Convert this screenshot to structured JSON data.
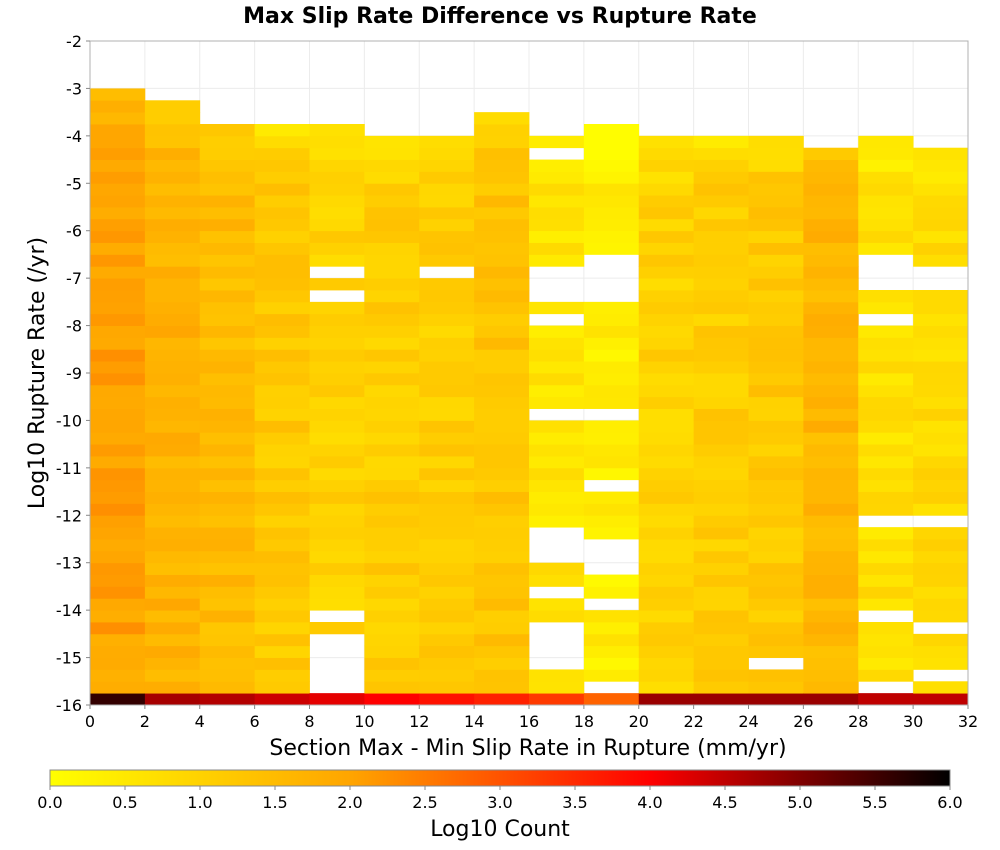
{
  "chart_data": {
    "type": "heatmap",
    "title": "Max Slip Rate Difference vs Rupture Rate",
    "xlabel": "Section Max - Min Slip Rate in Rupture (mm/yr)",
    "ylabel": "Log10 Rupture Rate (/yr)",
    "xlim": [
      0,
      32
    ],
    "ylim": [
      -16,
      -2
    ],
    "x_ticks": [
      "0",
      "2",
      "4",
      "6",
      "8",
      "10",
      "12",
      "14",
      "16",
      "18",
      "20",
      "22",
      "24",
      "26",
      "28",
      "30",
      "32"
    ],
    "y_ticks": [
      "-2",
      "-3",
      "-4",
      "-5",
      "-6",
      "-7",
      "-8",
      "-9",
      "-10",
      "-11",
      "-12",
      "-13",
      "-14",
      "-15",
      "-16"
    ],
    "x_bin_width": 2,
    "y_bin_width": 0.25,
    "grid": true,
    "colorbar": {
      "label": "Log10 Count",
      "min": 0.0,
      "max": 6.0,
      "ticks": [
        "0.0",
        "0.5",
        "1.0",
        "1.5",
        "2.0",
        "2.5",
        "3.0",
        "3.5",
        "4.0",
        "4.5",
        "5.0",
        "5.5",
        "6.0"
      ],
      "stops": [
        "#ffff00",
        "#ffa500",
        "#ff0000",
        "#000000"
      ]
    },
    "columns": [
      {
        "x": 0,
        "top": -3.0,
        "base": 2.0,
        "empty": [],
        "bottom_value": 5.6
      },
      {
        "x": 2,
        "top": -3.25,
        "base": 1.7,
        "empty": [],
        "bottom_value": 4.7
      },
      {
        "x": 4,
        "top": -3.75,
        "base": 1.5,
        "empty": [],
        "bottom_value": 4.6
      },
      {
        "x": 6,
        "top": -3.75,
        "base": 1.2,
        "empty": [],
        "bottom_value": 4.4
      },
      {
        "x": 8,
        "top": -3.75,
        "base": 1.0,
        "empty": [
          [
            -7.0,
            -6.75
          ],
          [
            -7.5,
            -7.25
          ],
          [
            -14.25,
            -14.0
          ],
          [
            -15.5,
            -14.5
          ],
          [
            -15.75,
            -15.5
          ]
        ],
        "bottom_value": 4.2
      },
      {
        "x": 10,
        "top": -4.0,
        "base": 1.1,
        "empty": [],
        "bottom_value": 4.0
      },
      {
        "x": 12,
        "top": -4.0,
        "base": 1.1,
        "empty": [
          [
            -7.0,
            -6.75
          ]
        ],
        "bottom_value": 3.8
      },
      {
        "x": 14,
        "top": -3.5,
        "base": 1.3,
        "empty": [],
        "bottom_value": 3.6
      },
      {
        "x": 16,
        "top": -4.0,
        "base": 0.6,
        "empty": [
          [
            -4.5,
            -4.25
          ],
          [
            -7.5,
            -6.75
          ],
          [
            -8.0,
            -7.75
          ],
          [
            -10.0,
            -9.75
          ],
          [
            -13.0,
            -12.25
          ],
          [
            -13.75,
            -13.5
          ],
          [
            -15.25,
            -14.25
          ]
        ],
        "bottom_value": 3.3
      },
      {
        "x": 18,
        "top": -3.75,
        "base": 0.4,
        "empty": [
          [
            -7.5,
            -6.5
          ],
          [
            -10.0,
            -9.75
          ],
          [
            -11.5,
            -11.25
          ],
          [
            -13.25,
            -12.5
          ],
          [
            -14.0,
            -13.75
          ],
          [
            -15.75,
            -15.5
          ]
        ],
        "bottom_value": 2.8
      },
      {
        "x": 20,
        "top": -4.0,
        "base": 1.0,
        "empty": [],
        "bottom_value": 4.8
      },
      {
        "x": 22,
        "top": -4.0,
        "base": 1.1,
        "empty": [],
        "bottom_value": 4.8
      },
      {
        "x": 24,
        "top": -4.0,
        "base": 1.2,
        "empty": [
          [
            -15.25,
            -15.0
          ]
        ],
        "bottom_value": 4.8
      },
      {
        "x": 26,
        "top": -4.25,
        "base": 1.6,
        "empty": [],
        "bottom_value": 4.8
      },
      {
        "x": 28,
        "top": -4.0,
        "base": 0.7,
        "empty": [
          [
            -7.25,
            -6.5
          ],
          [
            -8.0,
            -7.75
          ],
          [
            -12.25,
            -12.0
          ],
          [
            -14.25,
            -14.0
          ],
          [
            -15.75,
            -15.5
          ]
        ],
        "bottom_value": 4.5
      },
      {
        "x": 30,
        "top": -4.25,
        "base": 0.8,
        "empty": [
          [
            -7.25,
            -6.75
          ],
          [
            -12.25,
            -12.0
          ],
          [
            -14.5,
            -14.25
          ],
          [
            -15.5,
            -15.25
          ]
        ],
        "bottom_value": 4.5
      }
    ]
  }
}
